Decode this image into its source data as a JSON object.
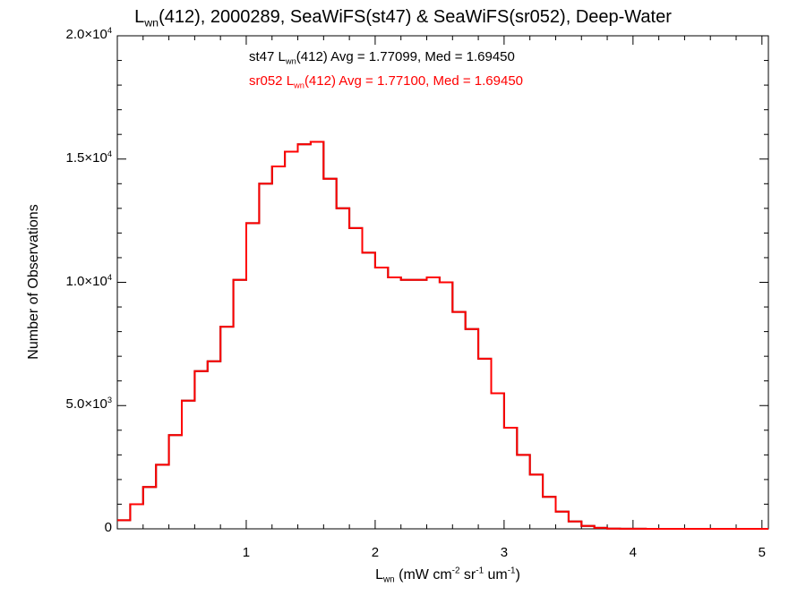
{
  "title": {
    "symbol": "L",
    "symbol_sub": "wn",
    "rest": "(412), 2000289, SeaWiFS(st47) & SeaWiFS(sr052), Deep-Water"
  },
  "stats": [
    {
      "prefix": "st47 L",
      "sub": "wn",
      "rest": "(412) Avg = 1.77099, Med = 1.69450",
      "color": "#000000"
    },
    {
      "prefix": "sr052 L",
      "sub": "wn",
      "rest": "(412) Avg = 1.77100, Med = 1.69450",
      "color": "#ff0000"
    }
  ],
  "axes": {
    "xlabel": {
      "symbol": "L",
      "sub": "wn",
      "p1": " (mW cm",
      "sup1": "-2",
      "p2": " sr",
      "sup2": "-1",
      "p3": " um",
      "sup3": "-1",
      "p4": ")"
    },
    "ylabel": "Number of Observations",
    "yticks": [
      {
        "value": 0,
        "mant": "0",
        "exp": ""
      },
      {
        "value": 5000,
        "mant": "5.0×10",
        "exp": "3"
      },
      {
        "value": 10000,
        "mant": "1.0×10",
        "exp": "4"
      },
      {
        "value": 15000,
        "mant": "1.5×10",
        "exp": "4"
      },
      {
        "value": 20000,
        "mant": "2.0×10",
        "exp": "4"
      }
    ],
    "xticks": [
      "1",
      "2",
      "3",
      "4",
      "5"
    ]
  },
  "chart_data": {
    "type": "line",
    "step": true,
    "xlim": [
      0,
      5.05
    ],
    "ylim": [
      0,
      20000
    ],
    "colors": {
      "st47": "#000000",
      "sr052": "#ff0000"
    },
    "x": [
      0.0,
      0.1,
      0.2,
      0.3,
      0.4,
      0.5,
      0.6,
      0.7,
      0.8,
      0.9,
      1.0,
      1.1,
      1.2,
      1.3,
      1.4,
      1.5,
      1.6,
      1.7,
      1.8,
      1.9,
      2.0,
      2.1,
      2.2,
      2.3,
      2.4,
      2.5,
      2.6,
      2.7,
      2.8,
      2.9,
      3.0,
      3.1,
      3.2,
      3.3,
      3.4,
      3.5,
      3.6,
      3.7,
      3.8,
      3.9,
      4.0,
      4.1,
      4.2,
      4.3,
      4.4,
      4.5,
      4.6,
      4.7,
      4.8,
      4.9,
      5.0,
      5.05
    ],
    "series": [
      {
        "name": "st47",
        "values": [
          350,
          1000,
          1700,
          2600,
          3800,
          5200,
          6400,
          6800,
          8200,
          10100,
          12400,
          14000,
          14700,
          15300,
          15600,
          15700,
          14200,
          13000,
          12200,
          11200,
          10600,
          10200,
          10100,
          10100,
          10200,
          10000,
          8800,
          8100,
          6900,
          5500,
          4100,
          3000,
          2200,
          1300,
          700,
          300,
          120,
          40,
          10,
          5,
          2,
          1,
          1,
          1,
          1,
          1,
          1,
          1,
          1,
          1,
          1,
          1
        ]
      },
      {
        "name": "sr052",
        "values": [
          350,
          1000,
          1700,
          2600,
          3800,
          5200,
          6400,
          6800,
          8200,
          10100,
          12400,
          14000,
          14700,
          15300,
          15600,
          15700,
          14200,
          13000,
          12200,
          11200,
          10600,
          10200,
          10100,
          10100,
          10200,
          10000,
          8800,
          8100,
          6900,
          5500,
          4100,
          3000,
          2200,
          1300,
          700,
          300,
          120,
          40,
          10,
          5,
          2,
          1,
          1,
          1,
          1,
          1,
          1,
          1,
          1,
          1,
          1,
          1
        ]
      }
    ]
  }
}
